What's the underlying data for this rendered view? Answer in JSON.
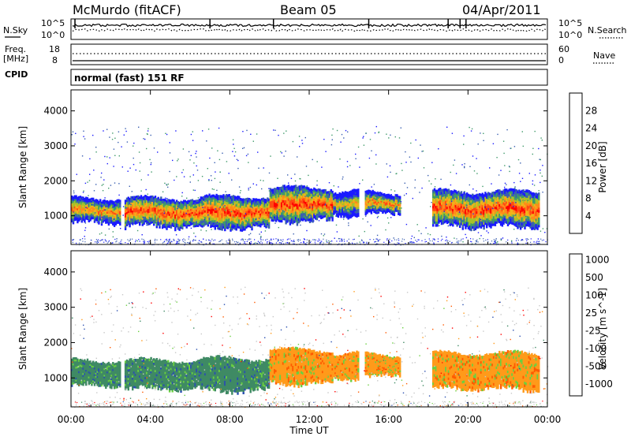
{
  "header": {
    "station": "McMurdo (fitACF)",
    "beam": "Beam 05",
    "date": "04/Apr/2011"
  },
  "noise_panel": {
    "left_label": "N.Sky",
    "right_label": "N.Search",
    "left_ticks": [
      "10^5",
      "10^0"
    ],
    "right_ticks": [
      "10^5",
      "10^0"
    ]
  },
  "freq_panel": {
    "left_label_top": "Freq.",
    "left_label_unit": "[MHz]",
    "right_label": "Nave",
    "left_ticks": [
      "18",
      "8"
    ],
    "right_ticks": [
      "60",
      "0"
    ]
  },
  "cpid": {
    "label": "CPID",
    "program": "normal (fast) 151 RF"
  },
  "colors": {
    "power_scale": [
      "#1a1aff",
      "#3a5fb0",
      "#3f9a6a",
      "#a6c12a",
      "#f2b21a",
      "#ff8a1a",
      "#ff4a12",
      "#ff0000"
    ],
    "velocity_scale": [
      "#ff0000",
      "#ff5a00",
      "#ff9a1a",
      "#c8c8c8",
      "#c8c8c8",
      "#6ad040",
      "#3f8a64",
      "#2a4fb0"
    ],
    "ground_scatter": "#c8c8c8"
  },
  "icons": [
    "solid-line-legend-icon",
    "dotted-line-legend-icon"
  ],
  "chart_data": [
    {
      "type": "heatmap",
      "title": "",
      "parameter": "Power",
      "colorbar_label": "Power [dB]",
      "colorbar_ticks": [
        "4",
        "8",
        "12",
        "16",
        "20",
        "24",
        "28"
      ],
      "xlabel": "",
      "ylabel": "Slant Range [km]",
      "y_ticks": [
        "1000",
        "2000",
        "3000",
        "4000"
      ],
      "ylim": [
        180,
        4600
      ],
      "xlim": [
        "00:00",
        "24:00"
      ],
      "scatter_bands": [
        {
          "t_start": 0.0,
          "t_end": 2.5,
          "range_low": 800,
          "range_high": 1500,
          "peak_db": 24
        },
        {
          "t_start": 2.7,
          "t_end": 6.5,
          "range_low": 700,
          "range_high": 1500,
          "peak_db": 28
        },
        {
          "t_start": 6.5,
          "t_end": 10.0,
          "range_low": 650,
          "range_high": 1550,
          "peak_db": 28
        },
        {
          "t_start": 10.0,
          "t_end": 13.2,
          "range_low": 850,
          "range_high": 1800,
          "peak_db": 28
        },
        {
          "t_start": 13.2,
          "t_end": 14.5,
          "range_low": 1000,
          "range_high": 1700,
          "peak_db": 20
        },
        {
          "t_start": 14.8,
          "t_end": 16.6,
          "range_low": 1050,
          "range_high": 1650,
          "peak_db": 24
        },
        {
          "t_start": 18.2,
          "t_end": 23.6,
          "range_low": 700,
          "range_high": 1700,
          "peak_db": 28
        }
      ]
    },
    {
      "type": "heatmap",
      "title": "",
      "parameter": "Velocity",
      "colorbar_label": "Velocity [m s^-1]",
      "colorbar_ticks": [
        "1000",
        "500",
        "100",
        "25",
        "-25",
        "-100",
        "-500",
        "-1000"
      ],
      "xlabel": "Time UT",
      "x_ticks": [
        "00:00",
        "04:00",
        "08:00",
        "12:00",
        "16:00",
        "20:00",
        "00:00"
      ],
      "ylabel": "Slant Range [km]",
      "y_ticks": [
        "1000",
        "2000",
        "3000",
        "4000"
      ],
      "ylim": [
        180,
        4600
      ],
      "xlim": [
        "00:00",
        "24:00"
      ],
      "scatter_bands": [
        {
          "t_start": 0.0,
          "t_end": 2.5,
          "range_low": 800,
          "range_high": 1500,
          "velocity": 150
        },
        {
          "t_start": 2.7,
          "t_end": 6.5,
          "range_low": 700,
          "range_high": 1500,
          "velocity": 150
        },
        {
          "t_start": 6.5,
          "t_end": 10.0,
          "range_low": 650,
          "range_high": 1550,
          "velocity": 150
        },
        {
          "t_start": 10.0,
          "t_end": 13.2,
          "range_low": 850,
          "range_high": 1800,
          "velocity": -200
        },
        {
          "t_start": 13.2,
          "t_end": 14.5,
          "range_low": 1000,
          "range_high": 1700,
          "velocity": -200
        },
        {
          "t_start": 14.8,
          "t_end": 16.6,
          "range_low": 1050,
          "range_high": 1650,
          "velocity": -200
        },
        {
          "t_start": 18.2,
          "t_end": 23.6,
          "range_low": 700,
          "range_high": 1700,
          "velocity": -200
        }
      ]
    }
  ]
}
